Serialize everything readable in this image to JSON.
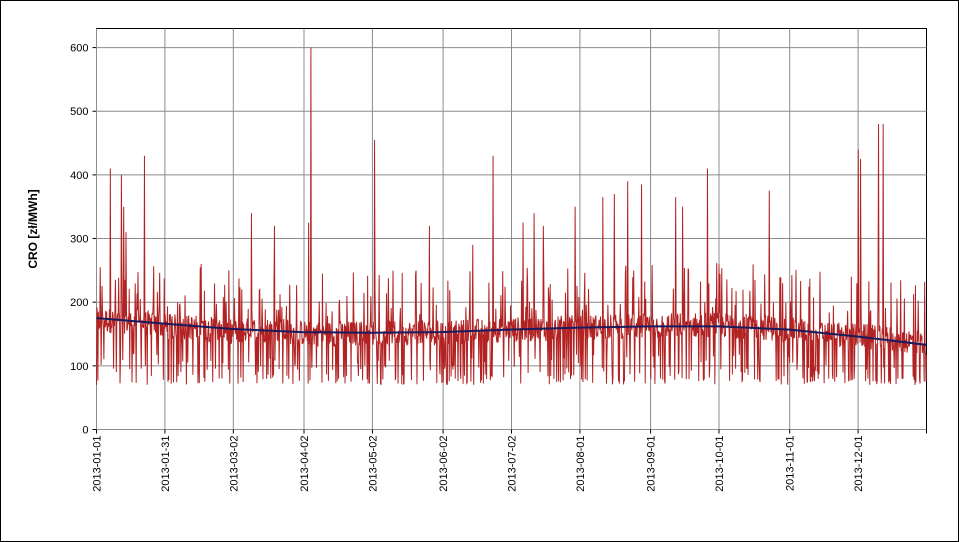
{
  "chart_data": {
    "type": "line",
    "title": "",
    "xlabel": "",
    "ylabel": "CRO [zł/MWh]",
    "x_range": [
      "2013-01-01",
      "2013-12-31"
    ],
    "ylim": [
      0,
      630
    ],
    "y_ticks": [
      "0",
      "100",
      "200",
      "300",
      "400",
      "500",
      "600"
    ],
    "x_ticks": [
      "2013-01-01",
      "2013-01-31",
      "2013-03-02",
      "2013-04-02",
      "2013-05-02",
      "2013-06-02",
      "2013-07-02",
      "2013-08-01",
      "2013-09-01",
      "2013-10-01",
      "2013-11-01",
      "2013-12-01"
    ],
    "grid": true,
    "legend": "none",
    "colors": {
      "hourly": "#b22222",
      "trend": "#1a1a5e"
    },
    "series": [
      {
        "role": "hourly",
        "base": [
          [
            "2013-01-01",
            170
          ],
          [
            "2013-01-15",
            168
          ],
          [
            "2013-02-01",
            160
          ],
          [
            "2013-02-15",
            158
          ],
          [
            "2013-03-01",
            152
          ],
          [
            "2013-03-15",
            155
          ],
          [
            "2013-04-01",
            150
          ],
          [
            "2013-04-15",
            148
          ],
          [
            "2013-05-01",
            150
          ],
          [
            "2013-05-15",
            150
          ],
          [
            "2013-06-01",
            150
          ],
          [
            "2013-06-15",
            152
          ],
          [
            "2013-07-01",
            155
          ],
          [
            "2013-07-15",
            156
          ],
          [
            "2013-08-01",
            158
          ],
          [
            "2013-08-15",
            160
          ],
          [
            "2013-09-01",
            160
          ],
          [
            "2013-09-15",
            162
          ],
          [
            "2013-10-01",
            162
          ],
          [
            "2013-10-15",
            160
          ],
          [
            "2013-11-01",
            155
          ],
          [
            "2013-11-15",
            150
          ],
          [
            "2013-12-01",
            145
          ],
          [
            "2013-12-15",
            140
          ],
          [
            "2013-12-31",
            135
          ]
        ],
        "spikes": [
          [
            "2013-01-01",
            70
          ],
          [
            "2013-01-07",
            410
          ],
          [
            "2013-01-12",
            400
          ],
          [
            "2013-01-13",
            350
          ],
          [
            "2013-01-14",
            310
          ],
          [
            "2013-01-22",
            430
          ],
          [
            "2013-02-16",
            260
          ],
          [
            "2013-02-28",
            250
          ],
          [
            "2013-03-10",
            340
          ],
          [
            "2013-03-20",
            320
          ],
          [
            "2013-04-04",
            325
          ],
          [
            "2013-04-05",
            600
          ],
          [
            "2013-05-03",
            455
          ],
          [
            "2013-05-27",
            320
          ],
          [
            "2013-06-15",
            430
          ],
          [
            "2013-06-15",
            290
          ],
          [
            "2013-06-24",
            430
          ],
          [
            "2013-07-07",
            325
          ],
          [
            "2013-07-12",
            340
          ],
          [
            "2013-07-16",
            320
          ],
          [
            "2013-07-30",
            350
          ],
          [
            "2013-08-11",
            365
          ],
          [
            "2013-08-16",
            370
          ],
          [
            "2013-08-22",
            390
          ],
          [
            "2013-08-28",
            385
          ],
          [
            "2013-09-12",
            365
          ],
          [
            "2013-09-15",
            350
          ],
          [
            "2013-09-26",
            410
          ],
          [
            "2013-10-23",
            375
          ],
          [
            "2013-10-29",
            230
          ],
          [
            "2013-12-01",
            440
          ],
          [
            "2013-12-02",
            425
          ],
          [
            "2013-12-10",
            480
          ],
          [
            "2013-12-12",
            480
          ],
          [
            "2013-12-26",
            70
          ],
          [
            "2013-12-30",
            75
          ]
        ]
      },
      {
        "role": "trend",
        "points": [
          [
            "2013-01-01",
            175
          ],
          [
            "2013-02-01",
            166
          ],
          [
            "2013-03-01",
            158
          ],
          [
            "2013-04-01",
            153
          ],
          [
            "2013-05-01",
            152
          ],
          [
            "2013-06-01",
            153
          ],
          [
            "2013-07-01",
            157
          ],
          [
            "2013-08-01",
            160
          ],
          [
            "2013-09-01",
            162
          ],
          [
            "2013-10-01",
            162
          ],
          [
            "2013-11-01",
            157
          ],
          [
            "2013-12-01",
            146
          ],
          [
            "2013-12-31",
            133
          ]
        ]
      }
    ]
  }
}
